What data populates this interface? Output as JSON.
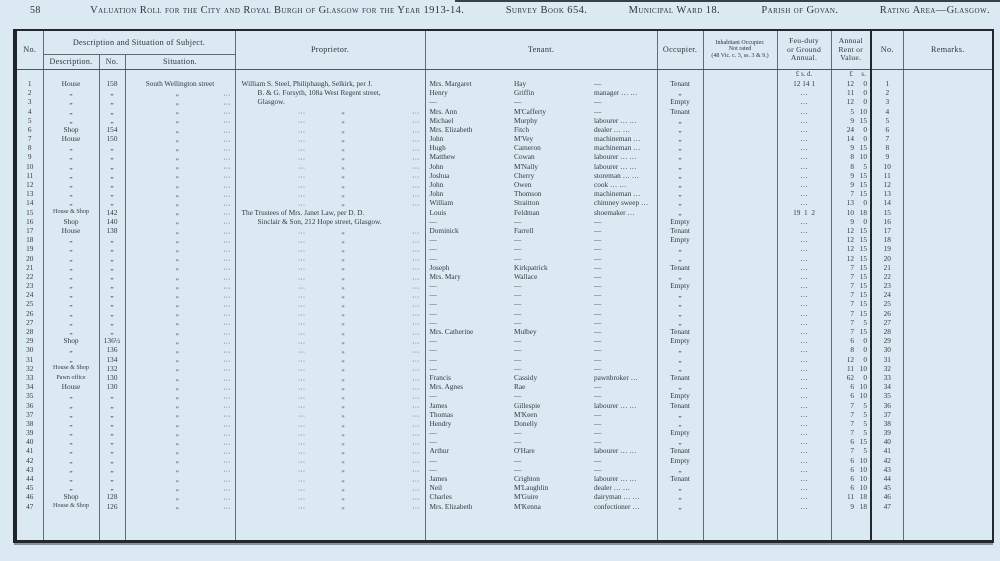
{
  "page": {
    "number": "58",
    "title": "Valuation Roll for the City and Royal Burgh of Glasgow for the Year 1913-14.",
    "survey_book": "Survey Book 654.",
    "ward": "Municipal Ward 18.",
    "parish": "Parish of Govan.",
    "rating_area": "Rating Area—Glasgow."
  },
  "table": {
    "headers": {
      "no": "No.",
      "group_desc": "Description and Situation of Subject.",
      "description": "Description.",
      "sub_no": "No.",
      "situation": "Situation.",
      "proprietor": "Proprietor.",
      "tenant": "Tenant.",
      "occupier": "Occupier.",
      "inhabitant_l1": "Inhabitant Occupier.",
      "inhabitant_l2": "Not rated",
      "inhabitant_l3": "(48 Vic. c. 3, ss. 3 & 9.)",
      "feu_l1": "Feu-duty",
      "feu_l2": "or Ground",
      "feu_l3": "Annual.",
      "rent_l1": "Annual",
      "rent_l2": "Rent or",
      "rent_l3": "Value.",
      "no_right": "No.",
      "remarks": "Remarks."
    },
    "currency": {
      "feu": "£ s. d.",
      "rent_pounds": "£",
      "rent_shillings": "s."
    },
    "marks": {
      "ditto": "„",
      "dots": "…",
      "dash": "—"
    },
    "rows": [
      [
        1,
        "House",
        "158",
        "South Wellington street",
        [
          "William S. Steel, Philiphaugh, Selkirk, per J.",
          0
        ],
        "Mrs. Margaret",
        "Hay",
        "—",
        "Tenant",
        "12 14 1",
        "12",
        "0"
      ],
      [
        2,
        "„",
        "„",
        "„",
        [
          "B. & G. Forsyth, 108a West Regent street,",
          1
        ],
        "Henry",
        "Griffin",
        "manager …  …",
        "„",
        "…",
        "11",
        "0"
      ],
      [
        3,
        "„",
        "„",
        "„",
        [
          "Glasgow.",
          1
        ],
        "—",
        "—",
        "—",
        "Empty",
        "…",
        "12",
        "0"
      ],
      [
        4,
        "„",
        "„",
        "„",
        null,
        "Mrs. Ann",
        "M'Cafferty",
        "—",
        "Tenant",
        "…",
        "5",
        "10"
      ],
      [
        5,
        "„",
        "„",
        "„",
        null,
        "Michael",
        "Murphy",
        "labourer …  …",
        "„",
        "…",
        "9",
        "15"
      ],
      [
        6,
        "Shop",
        "154",
        "„",
        null,
        "Mrs. Elizabeth",
        "Fitch",
        "dealer …  …",
        "„",
        "…",
        "24",
        "0"
      ],
      [
        7,
        "House",
        "150",
        "„",
        null,
        "John",
        "M'Vey",
        "machineman …",
        "„",
        "…",
        "14",
        "0"
      ],
      [
        8,
        "„",
        "„",
        "„",
        null,
        "Hugh",
        "Cameron",
        "machineman …",
        "„",
        "…",
        "9",
        "15"
      ],
      [
        9,
        "„",
        "„",
        "„",
        null,
        "Matthew",
        "Cowan",
        "labourer …  …",
        "„",
        "…",
        "8",
        "10"
      ],
      [
        10,
        "„",
        "„",
        "„",
        null,
        "John",
        "M'Nally",
        "labourer …  …",
        "„",
        "…",
        "8",
        "5"
      ],
      [
        11,
        "„",
        "„",
        "„",
        null,
        "Joshua",
        "Cherry",
        "storeman …  …",
        "„",
        "…",
        "9",
        "15"
      ],
      [
        12,
        "„",
        "„",
        "„",
        null,
        "John",
        "Owen",
        "cook …  …",
        "„",
        "…",
        "9",
        "15"
      ],
      [
        13,
        "„",
        "„",
        "„",
        null,
        "John",
        "Thomson",
        "machineman …",
        "„",
        "…",
        "7",
        "15"
      ],
      [
        14,
        "„",
        "„",
        "„",
        null,
        "William",
        "Straitton",
        "chimney sweep …",
        "„",
        "…",
        "13",
        "0"
      ],
      [
        15,
        "House & Shop",
        "142",
        "„",
        [
          "The Trustees of Mrs. Janet Law, per D. D.",
          0
        ],
        "Louis",
        "Feldman",
        "shoemaker …",
        "„",
        "19  1  2",
        "10",
        "18"
      ],
      [
        16,
        "Shop",
        "140",
        "„",
        [
          "Sinclair & Son, 212 Hope street, Glasgow.",
          1
        ],
        "—",
        "—",
        "—",
        "Empty",
        "…",
        "9",
        "0"
      ],
      [
        17,
        "House",
        "138",
        "„",
        null,
        "Dominick",
        "Farrell",
        "—",
        "Tenant",
        "…",
        "12",
        "15"
      ],
      [
        18,
        "„",
        "„",
        "„",
        null,
        "—",
        "—",
        "—",
        "Empty",
        "…",
        "12",
        "15"
      ],
      [
        19,
        "„",
        "„",
        "„",
        null,
        "—",
        "—",
        "—",
        "„",
        "…",
        "12",
        "15"
      ],
      [
        20,
        "„",
        "„",
        "„",
        null,
        "—",
        "—",
        "—",
        "„",
        "…",
        "12",
        "15"
      ],
      [
        21,
        "„",
        "„",
        "„",
        null,
        "Joseph",
        "Kirkpatrick",
        "—",
        "Tenant",
        "…",
        "7",
        "15"
      ],
      [
        22,
        "„",
        "„",
        "„",
        null,
        "Mrs. Mary",
        "Wallace",
        "—",
        "„",
        "…",
        "7",
        "15"
      ],
      [
        23,
        "„",
        "„",
        "„",
        null,
        "—",
        "—",
        "—",
        "Empty",
        "…",
        "7",
        "15"
      ],
      [
        24,
        "„",
        "„",
        "„",
        null,
        "—",
        "—",
        "—",
        "„",
        "…",
        "7",
        "15"
      ],
      [
        25,
        "„",
        "„",
        "„",
        null,
        "—",
        "—",
        "—",
        "„",
        "…",
        "7",
        "15"
      ],
      [
        26,
        "„",
        "„",
        "„",
        null,
        "—",
        "—",
        "—",
        "„",
        "…",
        "7",
        "15"
      ],
      [
        27,
        "„",
        "„",
        "„",
        null,
        "—",
        "—",
        "—",
        "„",
        "…",
        "7",
        "5"
      ],
      [
        28,
        "„",
        "„",
        "„",
        null,
        "Mrs. Catherine",
        "Mulbey",
        "—",
        "Tenant",
        "…",
        "7",
        "15"
      ],
      [
        29,
        "Shop",
        "136½",
        "„",
        null,
        "—",
        "—",
        "—",
        "Empty",
        "…",
        "6",
        "0"
      ],
      [
        30,
        "„",
        "136",
        "„",
        null,
        "—",
        "—",
        "—",
        "„",
        "…",
        "8",
        "0"
      ],
      [
        31,
        "„",
        "134",
        "„",
        null,
        "—",
        "—",
        "—",
        "„",
        "…",
        "12",
        "0"
      ],
      [
        32,
        "House & Shop",
        "132",
        "„",
        null,
        "—",
        "—",
        "—",
        "„",
        "…",
        "11",
        "10"
      ],
      [
        33,
        "Pawn office",
        "130",
        "„",
        null,
        "Francis",
        "Cassidy",
        "pawnbroker …",
        "Tenant",
        "…",
        "62",
        "0"
      ],
      [
        34,
        "House",
        "130",
        "„",
        null,
        "Mrs. Agnes",
        "Rae",
        "—",
        "„",
        "…",
        "6",
        "10"
      ],
      [
        35,
        "„",
        "„",
        "„",
        null,
        "—",
        "—",
        "—",
        "Empty",
        "…",
        "6",
        "10"
      ],
      [
        36,
        "„",
        "„",
        "„",
        null,
        "James",
        "Gillespie",
        "labourer …  …",
        "Tenant",
        "…",
        "7",
        "5"
      ],
      [
        37,
        "„",
        "„",
        "„",
        null,
        "Thomas",
        "M'Keen",
        "—",
        "„",
        "…",
        "7",
        "5"
      ],
      [
        38,
        "„",
        "„",
        "„",
        null,
        "Hendry",
        "Donelly",
        "—",
        "„",
        "…",
        "7",
        "5"
      ],
      [
        39,
        "„",
        "„",
        "„",
        null,
        "—",
        "—",
        "—",
        "Empty",
        "…",
        "7",
        "5"
      ],
      [
        40,
        "„",
        "„",
        "„",
        null,
        "—",
        "—",
        "—",
        "„",
        "…",
        "6",
        "15"
      ],
      [
        41,
        "„",
        "„",
        "„",
        null,
        "Arthur",
        "O'Hare",
        "labourer …  …",
        "Tenant",
        "…",
        "7",
        "5"
      ],
      [
        42,
        "„",
        "„",
        "„",
        null,
        "—",
        "—",
        "—",
        "Empty",
        "…",
        "6",
        "10"
      ],
      [
        43,
        "„",
        "„",
        "„",
        null,
        "—",
        "—",
        "—",
        "„",
        "…",
        "6",
        "10"
      ],
      [
        44,
        "„",
        "„",
        "„",
        null,
        "James",
        "Crighton",
        "labourer …  …",
        "Tenant",
        "…",
        "6",
        "10"
      ],
      [
        45,
        "„",
        "„",
        "„",
        null,
        "Neil",
        "M'Laughlin",
        "dealer …  …",
        "„",
        "…",
        "6",
        "10"
      ],
      [
        46,
        "Shop",
        "128",
        "„",
        null,
        "Charles",
        "M'Guire",
        "dairyman …  …",
        "„",
        "…",
        "11",
        "18"
      ],
      [
        47,
        "House & Shop",
        "126",
        "„",
        null,
        "Mrs. Elizabeth",
        "M'Kenna",
        "confectioner …",
        "„",
        "…",
        "9",
        "18"
      ]
    ]
  }
}
